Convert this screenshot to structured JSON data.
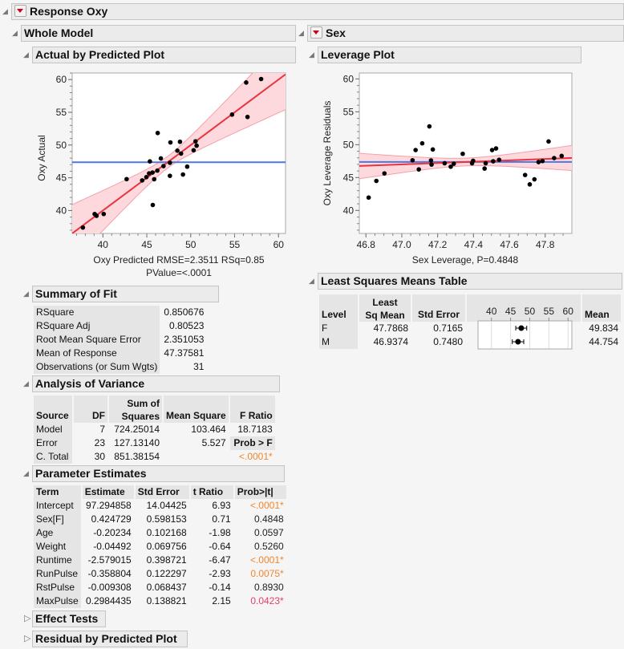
{
  "report": {
    "title": "Response Oxy"
  },
  "whole_model": {
    "title": "Whole Model",
    "plot_title": "Actual by Predicted Plot"
  },
  "sex": {
    "title": "Sex",
    "plot_title": "Leverage Plot"
  },
  "summary_of_fit": {
    "title": "Summary of Fit",
    "rows": [
      {
        "label": "RSquare",
        "value": "0.850676"
      },
      {
        "label": "RSquare Adj",
        "value": "0.80523"
      },
      {
        "label": "Root Mean Square Error",
        "value": "2.351053"
      },
      {
        "label": "Mean of Response",
        "value": "47.37581"
      },
      {
        "label": "Observations (or Sum Wgts)",
        "value": "31"
      }
    ]
  },
  "anova": {
    "title": "Analysis of Variance",
    "headers": {
      "source": "Source",
      "df": "DF",
      "ss1": "Sum of",
      "ss2": "Squares",
      "ms": "Mean Square",
      "f": "F Ratio"
    },
    "rows": [
      {
        "source": "Model",
        "df": "7",
        "ss": "724.25014",
        "ms": "103.464",
        "f": "18.7183"
      },
      {
        "source": "Error",
        "df": "23",
        "ss": "127.13140",
        "ms": "5.527",
        "f": "Prob > F"
      },
      {
        "source": "C. Total",
        "df": "30",
        "ss": "851.38154",
        "ms": "",
        "f": "<.0001*"
      }
    ]
  },
  "parameter_estimates": {
    "title": "Parameter Estimates",
    "headers": {
      "term": "Term",
      "estimate": "Estimate",
      "std_error": "Std Error",
      "t_ratio": "t Ratio",
      "prob": "Prob>|t|"
    },
    "rows": [
      {
        "term": "Intercept",
        "estimate": "97.294858",
        "std_error": "14.04425",
        "t_ratio": "6.93",
        "prob": "<.0001*",
        "color": "#f0862e"
      },
      {
        "term": "Sex[F]",
        "estimate": "0.424729",
        "std_error": "0.598153",
        "t_ratio": "0.71",
        "prob": "0.4848",
        "color": "#222222"
      },
      {
        "term": "Age",
        "estimate": "-0.20234",
        "std_error": "0.102168",
        "t_ratio": "-1.98",
        "prob": "0.0597",
        "color": "#222222"
      },
      {
        "term": "Weight",
        "estimate": "-0.04492",
        "std_error": "0.069756",
        "t_ratio": "-0.64",
        "prob": "0.5260",
        "color": "#222222"
      },
      {
        "term": "Runtime",
        "estimate": "-2.579015",
        "std_error": "0.398721",
        "t_ratio": "-6.47",
        "prob": "<.0001*",
        "color": "#f0862e"
      },
      {
        "term": "RunPulse",
        "estimate": "-0.358804",
        "std_error": "0.122297",
        "t_ratio": "-2.93",
        "prob": "0.0075*",
        "color": "#f0862e"
      },
      {
        "term": "RstPulse",
        "estimate": "-0.009308",
        "std_error": "0.068437",
        "t_ratio": "-0.14",
        "prob": "0.8930",
        "color": "#222222"
      },
      {
        "term": "MaxPulse",
        "estimate": "0.2984435",
        "std_error": "0.138821",
        "t_ratio": "2.15",
        "prob": "0.0423*",
        "color": "#e83e6c"
      }
    ]
  },
  "effect_tests": {
    "title": "Effect Tests"
  },
  "residual_plot": {
    "title": "Residual by Predicted Plot"
  },
  "lsm": {
    "title": "Least Squares Means Table",
    "headers": {
      "level": "Level",
      "lsm1": "Least",
      "lsm2": "Sq Mean",
      "std_error": "Std Error",
      "mean": "Mean"
    },
    "rows": [
      {
        "level": "F",
        "lsm": "47.7868",
        "std_error": "0.7165",
        "mean": "49.834"
      },
      {
        "level": "M",
        "lsm": "46.9374",
        "std_error": "0.7480",
        "mean": "44.754"
      }
    ]
  },
  "colors": {
    "fit": "#e8343f",
    "band": "#fdd8dc",
    "band_edge": "#f4a0aa",
    "mean_line": "#4a78e0",
    "orange": "#f0862e"
  },
  "chart_data": [
    {
      "type": "scatter",
      "title": "Actual by Predicted Plot",
      "xlabel": "Oxy Predicted RMSE=2.3511 RSq=0.85",
      "xlabel2": "PValue=<.0001",
      "ylabel": "Oxy Actual",
      "xlim": [
        36.5,
        60.8
      ],
      "ylim": [
        36.5,
        61
      ],
      "xticks": [
        40,
        45,
        50,
        55,
        60
      ],
      "yticks": [
        40,
        45,
        50,
        55,
        60
      ],
      "mean_line": 47.37581,
      "fit_line": {
        "slope": 1,
        "intercept": 0
      },
      "points": [
        [
          37.72,
          37.4
        ],
        [
          39.06,
          39.47
        ],
        [
          39.27,
          39.2
        ],
        [
          40.09,
          39.47
        ],
        [
          42.7,
          44.8
        ],
        [
          44.47,
          44.6
        ],
        [
          44.95,
          45.1
        ],
        [
          45.26,
          45.67
        ],
        [
          45.35,
          47.5
        ],
        [
          45.65,
          45.8
        ],
        [
          45.68,
          40.85
        ],
        [
          45.84,
          44.78
        ],
        [
          46.2,
          46.1
        ],
        [
          46.24,
          51.84
        ],
        [
          46.6,
          47.96
        ],
        [
          46.9,
          46.78
        ],
        [
          47.63,
          47.3
        ],
        [
          47.63,
          45.3
        ],
        [
          47.69,
          50.4
        ],
        [
          48.48,
          49.14
        ],
        [
          48.78,
          50.5
        ],
        [
          48.9,
          48.7
        ],
        [
          49.12,
          45.5
        ],
        [
          49.6,
          46.7
        ],
        [
          50.33,
          49.2
        ],
        [
          50.55,
          50.57
        ],
        [
          50.67,
          49.9
        ],
        [
          54.71,
          54.65
        ],
        [
          56.32,
          59.55
        ],
        [
          56.47,
          54.29
        ],
        [
          58.02,
          60.08
        ]
      ]
    },
    {
      "type": "scatter",
      "title": "Leverage Plot",
      "xlabel": "Sex Leverage, P=0.4848",
      "ylabel": "Oxy Leverage Residuals",
      "xlim": [
        46.763,
        47.949
      ],
      "ylim": [
        36.5,
        60.9
      ],
      "xticks": [
        46.8,
        47.0,
        47.2,
        47.4,
        47.6,
        47.8
      ],
      "yticks": [
        40,
        45,
        50,
        55,
        60
      ],
      "mean_line": 47.37581,
      "fit_line": {
        "slope": 1.03,
        "intercept": -1.41
      },
      "points": [
        [
          46.815,
          41.96
        ],
        [
          46.858,
          44.49
        ],
        [
          46.903,
          45.63
        ],
        [
          47.06,
          47.63
        ],
        [
          47.077,
          49.18
        ],
        [
          47.095,
          46.24
        ],
        [
          47.114,
          50.2
        ],
        [
          47.154,
          52.78
        ],
        [
          47.163,
          47.6
        ],
        [
          47.166,
          46.98
        ],
        [
          47.173,
          49.27
        ],
        [
          47.239,
          47.18
        ],
        [
          47.273,
          46.65
        ],
        [
          47.29,
          47.1
        ],
        [
          47.34,
          48.61
        ],
        [
          47.392,
          47.18
        ],
        [
          47.398,
          47.55
        ],
        [
          47.462,
          46.37
        ],
        [
          47.468,
          47.18
        ],
        [
          47.504,
          49.18
        ],
        [
          47.51,
          47.47
        ],
        [
          47.526,
          49.43
        ],
        [
          47.543,
          47.71
        ],
        [
          47.688,
          45.39
        ],
        [
          47.714,
          43.96
        ],
        [
          47.74,
          44.73
        ],
        [
          47.763,
          47.35
        ],
        [
          47.785,
          47.51
        ],
        [
          47.819,
          50.49
        ],
        [
          47.85,
          47.96
        ],
        [
          47.892,
          48.29
        ]
      ]
    },
    {
      "type": "scatter",
      "title": "",
      "xlim": [
        36.5,
        61
      ],
      "xticks": [
        40,
        45,
        50,
        55,
        60
      ],
      "points": [
        {
          "level": "F",
          "x": 47.7868,
          "std_error": 0.7165
        },
        {
          "level": "M",
          "x": 46.9374,
          "std_error": 0.748
        }
      ]
    }
  ]
}
